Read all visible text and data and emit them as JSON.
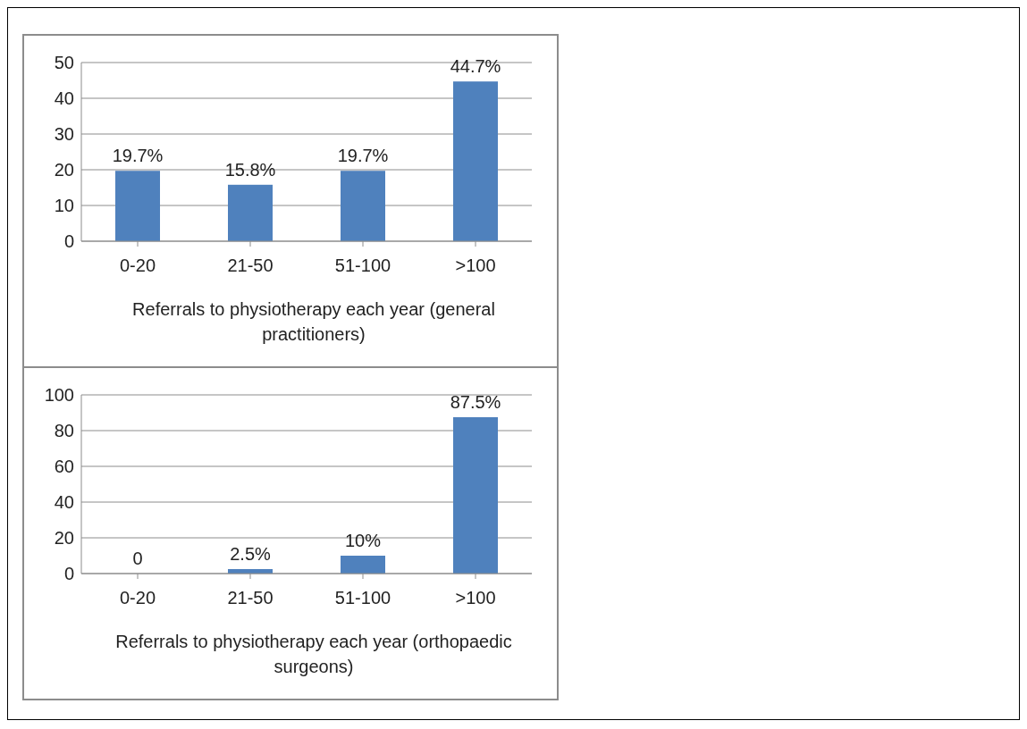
{
  "chart_data": [
    {
      "type": "bar",
      "categories": [
        "0-20",
        "21-50",
        "51-100",
        ">100"
      ],
      "values": [
        19.7,
        15.8,
        19.7,
        44.7
      ],
      "value_labels": [
        "19.7%",
        "15.8%",
        "19.7%",
        "44.7%"
      ],
      "color": "#4f81bd",
      "ylim": [
        0,
        50
      ],
      "yticks": [
        0,
        10,
        20,
        30,
        40,
        50
      ],
      "grid": "y",
      "xlabel": "Referrals to physiotherapy each year (general practitioners)"
    },
    {
      "type": "bar",
      "categories": [
        "0-20",
        "21-50",
        "51-100",
        ">100"
      ],
      "values": [
        0,
        2.5,
        10,
        87.5
      ],
      "value_labels": [
        "0",
        "2.5%",
        "10%",
        "87.5%"
      ],
      "color": "#4f81bd",
      "ylim": [
        0,
        100
      ],
      "yticks": [
        0,
        20,
        40,
        60,
        80,
        100
      ],
      "grid": "y",
      "xlabel": "Referrals to physiotherapy each year (orthopaedic surgeons)"
    }
  ]
}
